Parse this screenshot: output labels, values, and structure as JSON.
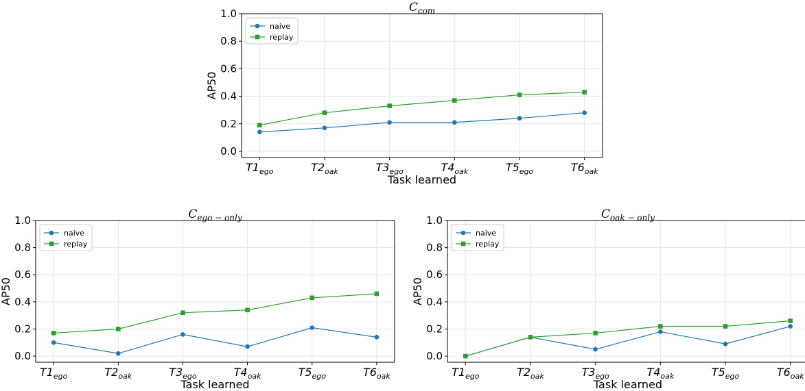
{
  "chart_data": [
    {
      "type": "line",
      "title": "C",
      "title_sub": "com",
      "xlabel": "Task learned",
      "ylabel": "AP50",
      "ylim": [
        0,
        1.0
      ],
      "yticks": [
        "0.0",
        "0.2",
        "0.4",
        "0.6",
        "0.8",
        "1.0"
      ],
      "categories": [
        {
          "main": "T1",
          "sub": "ego"
        },
        {
          "main": "T2",
          "sub": "oak"
        },
        {
          "main": "T3",
          "sub": "ego"
        },
        {
          "main": "T4",
          "sub": "oak"
        },
        {
          "main": "T5",
          "sub": "ego"
        },
        {
          "main": "T6",
          "sub": "oak"
        }
      ],
      "grid": true,
      "legend_position": "top-left",
      "series": [
        {
          "name": "naive",
          "color": "#1f77b4",
          "marker": "circle",
          "values": [
            0.14,
            0.17,
            0.21,
            0.21,
            0.24,
            0.28
          ]
        },
        {
          "name": "replay",
          "color": "#2ca02c",
          "marker": "square",
          "values": [
            0.19,
            0.28,
            0.33,
            0.37,
            0.41,
            0.43
          ]
        }
      ]
    },
    {
      "type": "line",
      "title": "C",
      "title_sub": "ego − only",
      "xlabel": "Task learned",
      "ylabel": "AP50",
      "ylim": [
        0,
        1.0
      ],
      "yticks": [
        "0.0",
        "0.2",
        "0.4",
        "0.6",
        "0.8",
        "1.0"
      ],
      "categories": [
        {
          "main": "T1",
          "sub": "ego"
        },
        {
          "main": "T2",
          "sub": "oak"
        },
        {
          "main": "T3",
          "sub": "ego"
        },
        {
          "main": "T4",
          "sub": "oak"
        },
        {
          "main": "T5",
          "sub": "ego"
        },
        {
          "main": "T6",
          "sub": "oak"
        }
      ],
      "grid": true,
      "legend_position": "top-left",
      "series": [
        {
          "name": "naive",
          "color": "#1f77b4",
          "marker": "circle",
          "values": [
            0.1,
            0.02,
            0.16,
            0.07,
            0.21,
            0.14
          ]
        },
        {
          "name": "replay",
          "color": "#2ca02c",
          "marker": "square",
          "values": [
            0.17,
            0.2,
            0.32,
            0.34,
            0.43,
            0.46
          ]
        }
      ]
    },
    {
      "type": "line",
      "title": "C",
      "title_sub": "oak − only",
      "xlabel": "Task learned",
      "ylabel": "AP50",
      "ylim": [
        0,
        1.0
      ],
      "yticks": [
        "0.0",
        "0.2",
        "0.4",
        "0.6",
        "0.8",
        "1.0"
      ],
      "categories": [
        {
          "main": "T1",
          "sub": "ego"
        },
        {
          "main": "T2",
          "sub": "oak"
        },
        {
          "main": "T3",
          "sub": "ego"
        },
        {
          "main": "T4",
          "sub": "oak"
        },
        {
          "main": "T5",
          "sub": "ego"
        },
        {
          "main": "T6",
          "sub": "oak"
        }
      ],
      "grid": true,
      "legend_position": "top-left",
      "series": [
        {
          "name": "naive",
          "color": "#1f77b4",
          "marker": "circle",
          "values": [
            0.0,
            0.14,
            0.05,
            0.18,
            0.09,
            0.22
          ]
        },
        {
          "name": "replay",
          "color": "#2ca02c",
          "marker": "square",
          "values": [
            0.0,
            0.14,
            0.17,
            0.22,
            0.22,
            0.26
          ]
        }
      ]
    }
  ]
}
